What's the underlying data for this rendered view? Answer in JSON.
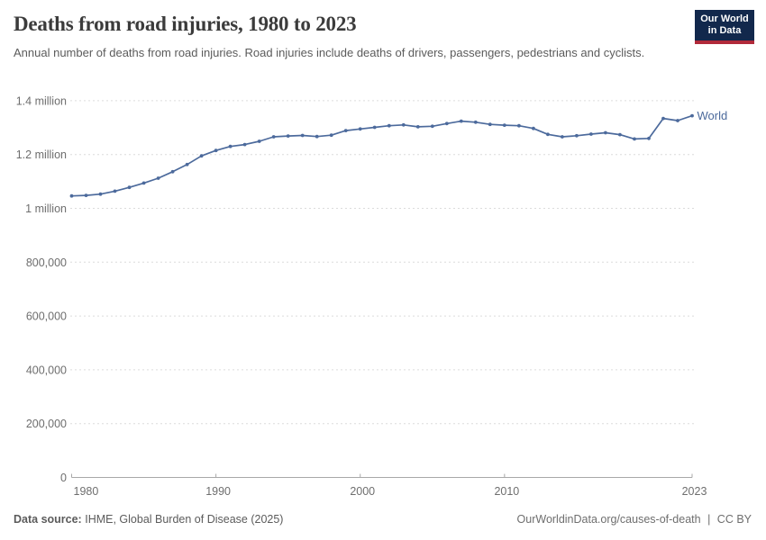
{
  "header": {
    "title": "Deaths from road injuries, 1980 to 2023",
    "subtitle": "Annual number of deaths from road injuries. Road injuries include deaths of drivers, passengers, pedestrians and cyclists.",
    "logo": {
      "line1": "Our World",
      "line2": "in Data"
    }
  },
  "chart_data": {
    "type": "line",
    "title": "Deaths from road injuries, 1980 to 2023",
    "xlabel": "",
    "ylabel": "",
    "xlim": [
      1980,
      2023
    ],
    "ylim": [
      0,
      1400000
    ],
    "grid": "horizontal-dashed",
    "legend_position": "end-of-line-label",
    "x": [
      1980,
      1981,
      1982,
      1983,
      1984,
      1985,
      1986,
      1987,
      1988,
      1989,
      1990,
      1991,
      1992,
      1993,
      1994,
      1995,
      1996,
      1997,
      1998,
      1999,
      2000,
      2001,
      2002,
      2003,
      2004,
      2005,
      2006,
      2007,
      2008,
      2009,
      2010,
      2011,
      2012,
      2013,
      2014,
      2015,
      2016,
      2017,
      2018,
      2019,
      2020,
      2021,
      2022,
      2023
    ],
    "series": [
      {
        "name": "World",
        "color": "#4c6a9c",
        "values": [
          1046000,
          1048000,
          1053000,
          1064000,
          1078000,
          1094000,
          1112000,
          1136000,
          1163000,
          1195000,
          1215000,
          1230000,
          1237000,
          1249000,
          1266000,
          1269000,
          1271000,
          1267000,
          1272000,
          1289000,
          1295000,
          1301000,
          1307000,
          1310000,
          1303000,
          1305000,
          1315000,
          1324000,
          1320000,
          1312000,
          1309000,
          1307000,
          1297000,
          1275000,
          1266000,
          1270000,
          1276000,
          1281000,
          1274000,
          1258000,
          1260000,
          1334000,
          1326000,
          1344000
        ]
      }
    ],
    "xticks": [
      1980,
      1990,
      2000,
      2010,
      2023
    ],
    "yticks": [
      {
        "value": 0,
        "label": "0"
      },
      {
        "value": 200000,
        "label": "200,000"
      },
      {
        "value": 400000,
        "label": "400,000"
      },
      {
        "value": 600000,
        "label": "600,000"
      },
      {
        "value": 800000,
        "label": "800,000"
      },
      {
        "value": 1000000,
        "label": "1 million"
      },
      {
        "value": 1200000,
        "label": "1.2 million"
      },
      {
        "value": 1400000,
        "label": "1.4 million"
      }
    ]
  },
  "footer": {
    "source_label": "Data source:",
    "source_value": "IHME, Global Burden of Disease (2025)",
    "url": "OurWorldinData.org/causes-of-death",
    "separator": "|",
    "license": "CC BY"
  },
  "colors": {
    "line_world": "#4c6a9c",
    "title_text": "#3b3b3b",
    "subtitle_text": "#5b5b5b",
    "tick_text": "#6e6e6e",
    "gridline": "#dcdcdc",
    "axis": "#a8a8a8",
    "logo_bg": "#12284c",
    "logo_stripe": "#b12a3a"
  }
}
